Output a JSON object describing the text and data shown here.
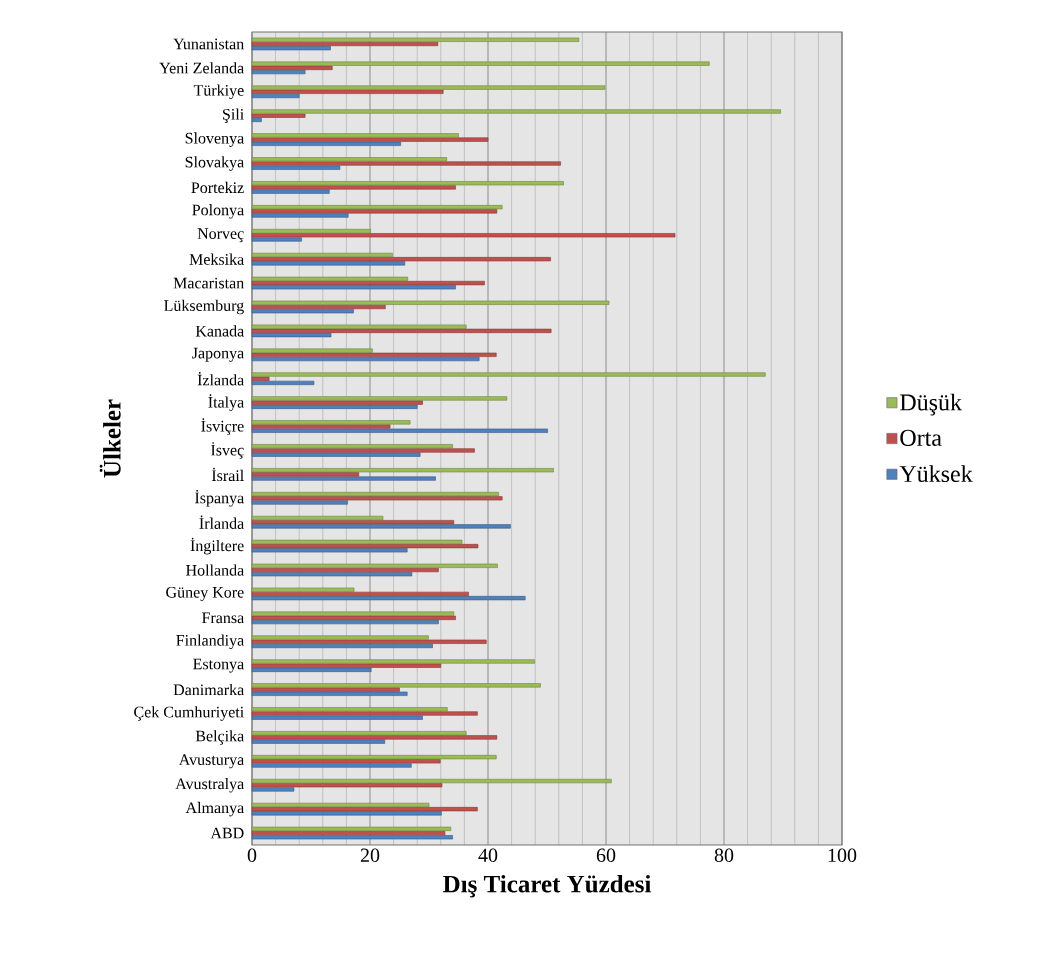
{
  "chart_data": {
    "type": "bar",
    "orientation": "horizontal",
    "xlabel": "Dış Ticaret Yüzdesi",
    "ylabel": "Ülkeler",
    "categories": [
      "Yunanistan",
      "Yeni Zelanda",
      "Türkiye",
      "Şili",
      "Slovenya",
      "Slovakya",
      "Portekiz",
      "Polonya",
      "Norveç",
      "Meksika",
      "Macaristan",
      "Lüksemburg",
      "Kanada",
      "Japonya",
      "İzlanda",
      "İtalya",
      "İsviçre",
      "İsveç",
      "İsrail",
      "İspanya",
      "İrlanda",
      "İngiltere",
      "Hollanda",
      "Güney Kore",
      "Fransa",
      "Finlandiya",
      "Estonya",
      "Danimarka",
      "Çek Cumhuriyeti",
      "Belçika",
      "Avusturya",
      "Avustralya",
      "Almanya",
      "ABD"
    ],
    "series": [
      {
        "name": "Düşük",
        "color": "#9bbb59",
        "values": [
          55.4,
          77.5,
          59.8,
          89.6,
          35.0,
          33.0,
          52.8,
          42.4,
          20.1,
          23.8,
          26.4,
          60.5,
          36.3,
          20.4,
          87.0,
          43.2,
          26.8,
          34.0,
          51.1,
          41.8,
          22.2,
          35.6,
          41.6,
          17.3,
          34.2,
          29.9,
          47.9,
          48.9,
          33.1,
          36.3,
          41.4,
          60.9,
          30.0,
          33.7
        ]
      },
      {
        "name": "Orta",
        "color": "#c0504d",
        "values": [
          31.5,
          13.6,
          32.4,
          9.0,
          40.0,
          52.3,
          34.5,
          41.5,
          71.7,
          50.6,
          39.4,
          22.6,
          50.7,
          41.4,
          2.9,
          28.9,
          23.4,
          37.7,
          18.1,
          42.4,
          34.2,
          38.3,
          31.6,
          36.7,
          34.5,
          39.7,
          32.0,
          25.0,
          38.2,
          41.5,
          31.9,
          32.2,
          38.2,
          32.7
        ]
      },
      {
        "name": "Yüksek",
        "color": "#4f81bd",
        "values": [
          13.3,
          9.0,
          8.0,
          1.6,
          25.2,
          14.9,
          13.1,
          16.3,
          8.4,
          25.9,
          34.5,
          17.2,
          13.4,
          38.5,
          10.5,
          28.0,
          50.1,
          28.5,
          31.1,
          16.2,
          43.8,
          26.3,
          27.1,
          46.3,
          31.6,
          30.6,
          20.2,
          26.3,
          28.9,
          22.5,
          27.0,
          7.1,
          32.1,
          34.0
        ]
      }
    ],
    "xlim": [
      0,
      100
    ],
    "xticks": [
      0,
      20,
      40,
      60,
      80,
      100
    ],
    "grid": "x",
    "legend": "right"
  }
}
